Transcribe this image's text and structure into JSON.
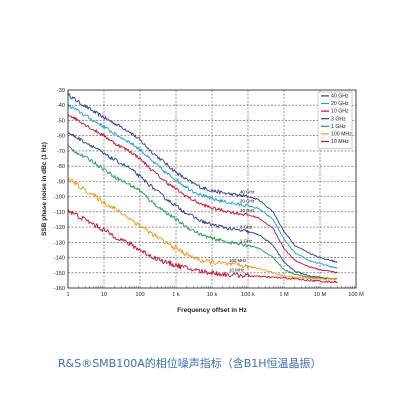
{
  "caption": "R&S®SMB100A的相位噪声指标（含B1H恒温晶振）",
  "chart_data": {
    "type": "line",
    "xlabel": "Frequency offset in Hz",
    "ylabel": "SSB phase noise in dBc (1 Hz)",
    "x_scale": "log",
    "xlim": [
      1,
      100000000
    ],
    "ylim": [
      -160,
      -30
    ],
    "grid": true,
    "legend_position": "top-right",
    "x_ticks": [
      {
        "v": 1,
        "label": "1"
      },
      {
        "v": 10,
        "label": "10"
      },
      {
        "v": 100,
        "label": "100"
      },
      {
        "v": 1000,
        "label": "1 k"
      },
      {
        "v": 10000,
        "label": "10 k"
      },
      {
        "v": 100000,
        "label": "100 k"
      },
      {
        "v": 1000000,
        "label": "1 M"
      },
      {
        "v": 10000000,
        "label": "10 M"
      },
      {
        "v": 100000000,
        "label": "100 M"
      }
    ],
    "y_ticks": [
      -30,
      -40,
      -50,
      -60,
      -70,
      -80,
      -90,
      -100,
      -110,
      -120,
      -130,
      -140,
      -150,
      -160
    ],
    "series": [
      {
        "name": "40 GHz",
        "color": "#2e3a8c",
        "jitter": 1.2,
        "plot_label": "40 GHz",
        "label_at": [
          60000,
          -99
        ],
        "x": [
          1,
          2,
          5,
          10,
          20,
          50,
          100,
          200,
          500,
          1000,
          2000,
          5000,
          10000,
          20000,
          50000,
          100000,
          200000,
          500000,
          1000000,
          2000000,
          5000000,
          10000000,
          20000000,
          30000000
        ],
        "y": [
          -33,
          -38,
          -44,
          -48,
          -52,
          -57,
          -63,
          -70,
          -78,
          -84,
          -89,
          -94,
          -96,
          -97.5,
          -99,
          -100,
          -102,
          -110,
          -123,
          -132,
          -137,
          -140,
          -142,
          -143
        ]
      },
      {
        "name": "20 GHz",
        "color": "#1a9fd8",
        "jitter": 1.2,
        "plot_label": "20 GHz",
        "label_at": [
          60000,
          -105
        ],
        "x": [
          1,
          2,
          5,
          10,
          20,
          50,
          100,
          200,
          500,
          1000,
          2000,
          5000,
          10000,
          20000,
          50000,
          100000,
          200000,
          500000,
          1000000,
          2000000,
          5000000,
          10000000,
          20000000,
          30000000
        ],
        "y": [
          -40,
          -44,
          -50,
          -54,
          -59,
          -64,
          -69,
          -76,
          -84,
          -89,
          -94,
          -99,
          -101.5,
          -103,
          -105,
          -106,
          -108,
          -115,
          -128,
          -137,
          -142,
          -144,
          -146,
          -147
        ]
      },
      {
        "name": "10 GHz",
        "color": "#c8102e",
        "jitter": 1.1,
        "plot_label": "10 GHz",
        "label_at": [
          60000,
          -111
        ],
        "x": [
          1,
          2,
          5,
          10,
          20,
          50,
          100,
          200,
          500,
          1000,
          2000,
          5000,
          10000,
          20000,
          50000,
          100000,
          200000,
          500000,
          1000000,
          2000000,
          5000000,
          10000000,
          20000000,
          30000000
        ],
        "y": [
          -46,
          -50,
          -56,
          -60,
          -65,
          -70,
          -75,
          -82,
          -90,
          -95,
          -100,
          -105,
          -107.5,
          -109,
          -111,
          -112,
          -114,
          -121,
          -134,
          -142,
          -146,
          -148,
          -149,
          -150
        ]
      },
      {
        "name": "3 GHz",
        "color": "#2e3a8c",
        "jitter": 1.2,
        "plot_label": "3 GHz",
        "label_at": [
          60000,
          -122
        ],
        "x": [
          1,
          2,
          5,
          10,
          20,
          50,
          100,
          200,
          500,
          1000,
          2000,
          5000,
          10000,
          20000,
          50000,
          100000,
          200000,
          500000,
          1000000,
          2000000,
          5000000,
          10000000,
          20000000,
          30000000
        ],
        "y": [
          -58,
          -62,
          -67,
          -72,
          -76,
          -81,
          -87,
          -93,
          -101,
          -106,
          -111,
          -116,
          -118.5,
          -120,
          -122,
          -123,
          -125,
          -132,
          -143,
          -149,
          -152,
          -153,
          -154,
          -154
        ]
      },
      {
        "name": "1 GHz",
        "color": "#1f9a55",
        "jitter": 1.2,
        "plot_label": "1 GHz",
        "label_at": [
          60000,
          -131
        ],
        "x": [
          1,
          2,
          5,
          10,
          20,
          50,
          100,
          200,
          500,
          1000,
          2000,
          5000,
          10000,
          20000,
          50000,
          100000,
          200000,
          500000,
          1000000,
          2000000,
          5000000,
          10000000,
          20000000,
          30000000
        ],
        "y": [
          -67,
          -72,
          -77,
          -82,
          -87,
          -92,
          -96,
          -103,
          -110,
          -115,
          -120,
          -125,
          -127.5,
          -129,
          -131,
          -132,
          -134,
          -140,
          -148,
          -151,
          -153,
          -153.5,
          -154,
          -154
        ]
      },
      {
        "name": "100 MHz",
        "color": "#f39a1e",
        "jitter": 1.6,
        "plot_label": "100 MHz",
        "label_at": [
          30000,
          -144
        ],
        "x": [
          1,
          2,
          5,
          10,
          20,
          50,
          100,
          200,
          500,
          1000,
          2000,
          5000,
          10000,
          20000,
          50000,
          100000,
          200000,
          500000,
          1000000,
          2000000,
          5000000,
          10000000,
          20000000,
          30000000
        ],
        "y": [
          -88,
          -93,
          -99,
          -104,
          -108,
          -114,
          -119,
          -124,
          -130,
          -134,
          -138,
          -142,
          -143,
          -144,
          -145,
          -146,
          -147,
          -150,
          -152,
          -153,
          -153.5,
          -154,
          -154,
          -154
        ]
      },
      {
        "name": "10 MHz",
        "color": "#c8102e",
        "jitter": 1.7,
        "plot_label": "10 MHz",
        "label_at": [
          30000,
          -150
        ],
        "x": [
          1,
          2,
          5,
          10,
          20,
          50,
          100,
          200,
          500,
          1000,
          2000,
          5000,
          10000,
          20000,
          50000,
          100000,
          200000,
          500000,
          1000000,
          2000000,
          5000000,
          10000000,
          20000000,
          30000000
        ],
        "y": [
          -109,
          -113,
          -118,
          -122,
          -126,
          -131,
          -135,
          -139,
          -143,
          -145,
          -147,
          -149,
          -150,
          -151,
          -151.5,
          -152,
          -152.5,
          -153,
          -153.5,
          -154,
          -155,
          -155.5,
          -156,
          -156
        ]
      }
    ]
  }
}
